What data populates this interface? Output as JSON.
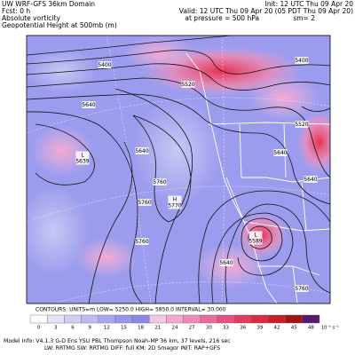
{
  "header": {
    "left": [
      "UW WRF-GFS 36km Domain",
      "Fcst:    0 h",
      "Absolute vorticity",
      "Geopotential Height at 500mb (m)"
    ],
    "right": [
      "Init: 12 UTC Thu 09 Apr 20",
      "Valid: 12 UTC Thu 09 Apr 20 (05 PDT Thu 09 Apr 20)",
      "at pressure =  500 hPa",
      "sm= 2"
    ]
  },
  "contour_labels": [
    "5400",
    "5520",
    "5400",
    "5520",
    "5640",
    "5640",
    "L\n5639",
    "5760",
    "5760",
    "H\n5770",
    "5640",
    "5640",
    "5760",
    "L\n5589",
    "5640",
    "5760"
  ],
  "contours_info": "CONTOURS:  UNITS=m   LOW=  5250.0     HIGH=  5850.0     INTERVAL=  30.000",
  "colorbar": {
    "labels": [
      0,
      3,
      6,
      9,
      12,
      15,
      18,
      21,
      24,
      27,
      30,
      33,
      36,
      39,
      42,
      45,
      48
    ],
    "unit": "10⁻⁵ s⁻¹",
    "colors": [
      "#ffffff",
      "#e4e4f6",
      "#d0d0f4",
      "#bcbcf2",
      "#a8a8ee",
      "#9696ea",
      "#8a8ae6",
      "#f4c8e4",
      "#f4a8d0",
      "#f088b8",
      "#ec6c9c",
      "#e85080",
      "#e43a60",
      "#dc2a40",
      "#c81e28",
      "#a01418",
      "#5a1a6a"
    ]
  },
  "model_info": [
    "Model Info: V4.1.3   G-D Ens YSU PBL   Thompson   Noah-MP   36 km,  37 levels,  216 sec",
    "LW: RRTMG   SW: RRTMG   DIFF: full   KM: 2D Smagor   INIT: RAP+GFS"
  ]
}
